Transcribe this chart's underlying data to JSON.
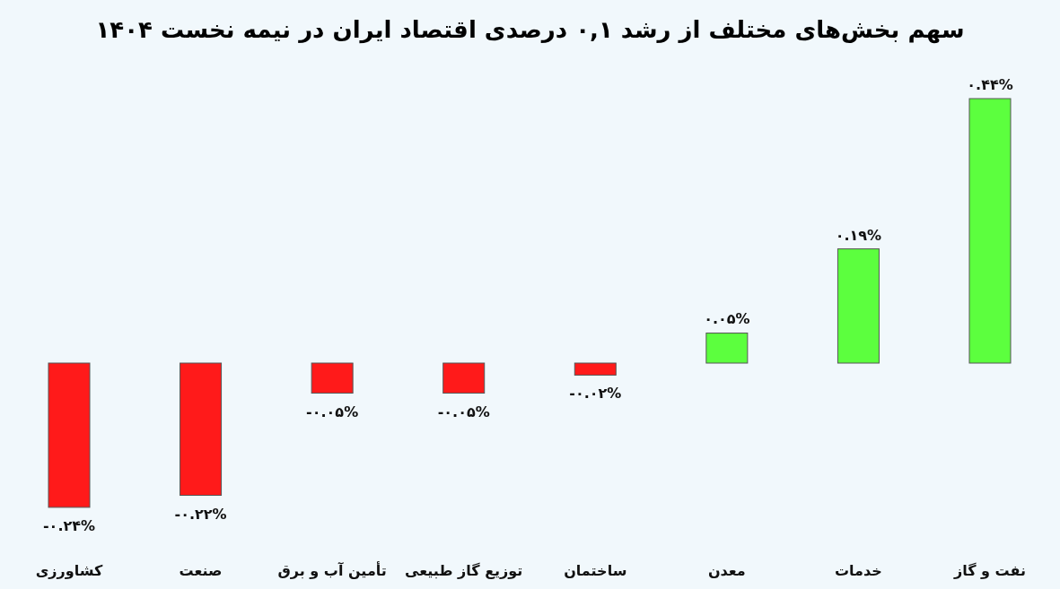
{
  "chart_data": {
    "type": "bar",
    "title": "سهم بخش‌های مختلف از رشد ۰,۱ درصدی اقتصاد ایران در نیمه نخست ۱۴۰۴",
    "categories": [
      "کشاورزی",
      "صنعت",
      "تأمین آب و برق",
      "توزیع گاز طبیعی",
      "ساختمان",
      "معدن",
      "خدمات",
      "نفت و گاز"
    ],
    "values": [
      -0.24,
      -0.22,
      -0.05,
      -0.05,
      -0.02,
      0.05,
      0.19,
      0.44
    ],
    "colors": [
      "#ff1a1a",
      "#ff1a1a",
      "#ff1a1a",
      "#ff1a1a",
      "#ff1a1a",
      "#5cff3e",
      "#5cff3e",
      "#5cff3e"
    ],
    "value_labels": [
      "-۰.۲۴%",
      "-۰.۲۲%",
      "-۰.۰۵%",
      "-۰.۰۵%",
      "-۰.۰۲%",
      "۰.۰۵%",
      "۰.۱۹%",
      "۰.۴۴%"
    ]
  }
}
